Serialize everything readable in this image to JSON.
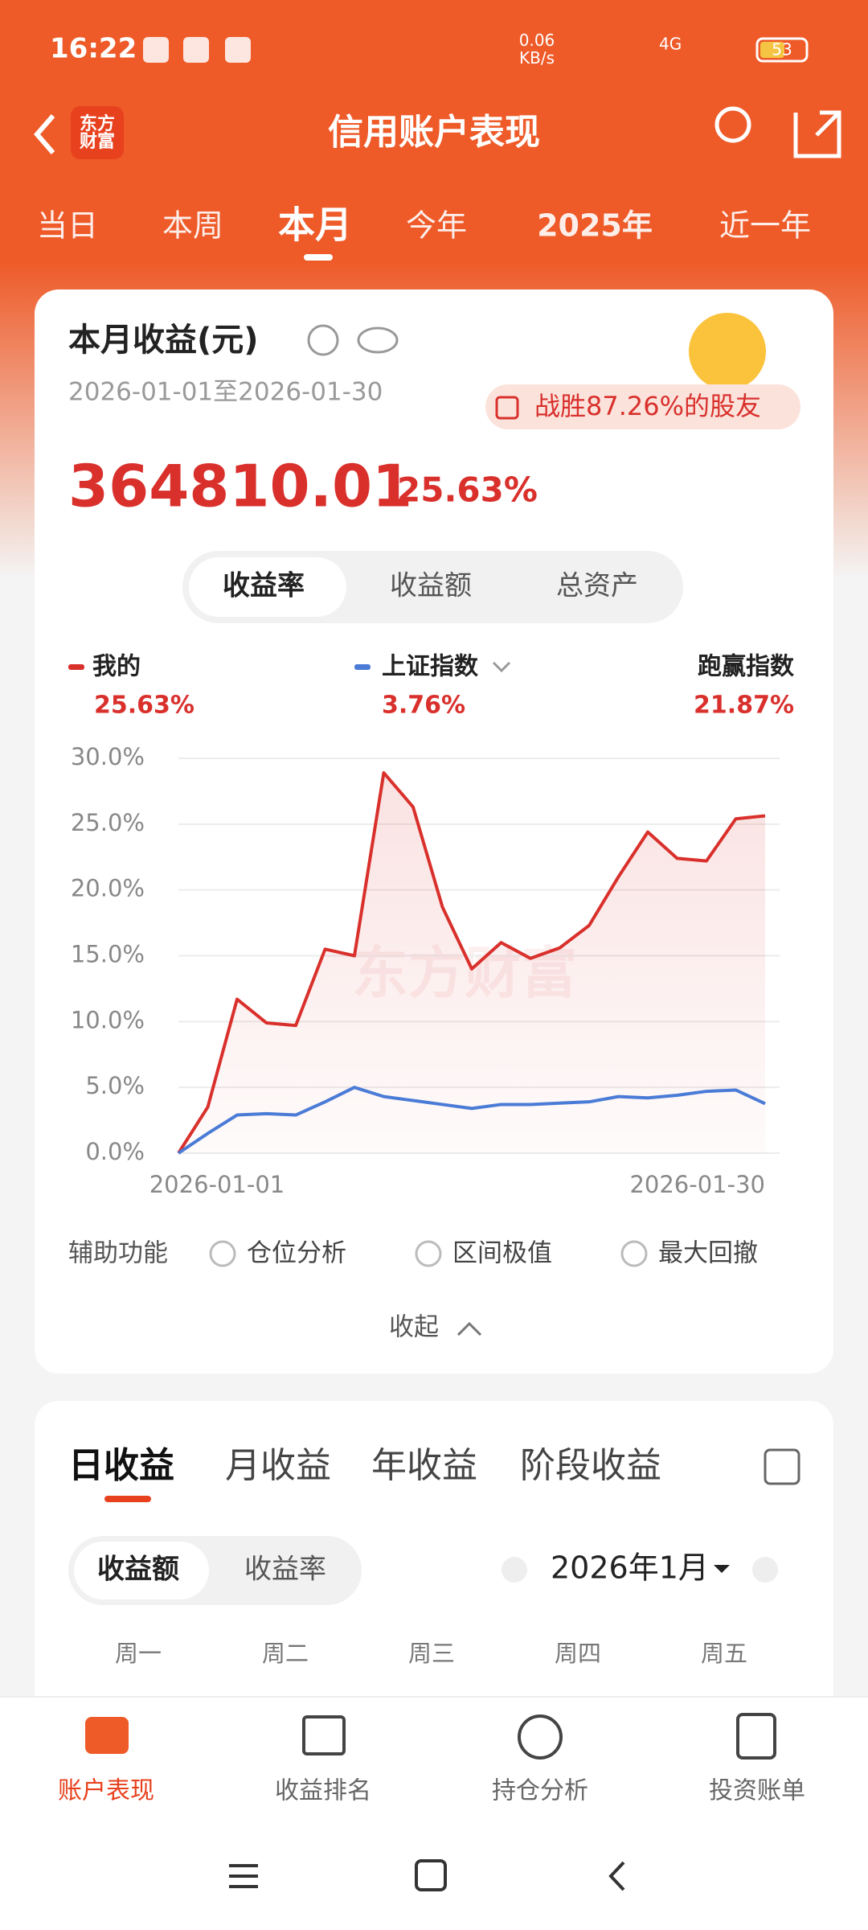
{
  "status_bar": {
    "time": "16:22",
    "net_speed": "0.06\nKB/s",
    "network": "4G",
    "battery": "53"
  },
  "header": {
    "title": "信用账户表现",
    "logo": "东方\n财富"
  },
  "period_tabs": [
    "当日",
    "本周",
    "本月",
    "今年",
    "2025年",
    "近一年"
  ],
  "summary": {
    "title": "本月收益(元)",
    "date_range": "2026-01-01至2026-01-30",
    "beat": "战胜87.26%的股友",
    "amount": "364810.01",
    "rate": "25.63%"
  },
  "metric_tabs": [
    "收益率",
    "收益额",
    "总资产"
  ],
  "legend": [
    {
      "name": "我的",
      "value": "25.63%"
    },
    {
      "name": "上证指数",
      "value": "3.76%"
    },
    {
      "name": "跑赢指数",
      "value": "21.87%"
    }
  ],
  "chart_data": {
    "type": "line",
    "watermark": "东方财富",
    "categories": [
      "2026-01-01",
      null,
      null,
      null,
      null,
      null,
      null,
      null,
      null,
      null,
      null,
      null,
      null,
      null,
      null,
      null,
      null,
      null,
      null,
      null,
      "2026-01-30"
    ],
    "series": [
      {
        "name": "我的",
        "color": "#d9302c",
        "values": [
          0,
          3.5,
          11.7,
          9.9,
          9.7,
          15.5,
          15.0,
          28.9,
          26.3,
          18.7,
          14.0,
          16.0,
          14.8,
          15.6,
          17.3,
          21.0,
          24.4,
          22.4,
          22.2,
          25.4,
          25.63
        ]
      },
      {
        "name": "上证指数",
        "color": "#4a7bd6",
        "values": [
          0,
          1.5,
          2.9,
          3.0,
          2.9,
          3.9,
          5.0,
          4.3,
          4.0,
          3.7,
          3.4,
          3.7,
          3.7,
          3.8,
          3.9,
          4.3,
          4.2,
          4.4,
          4.7,
          4.8,
          3.76
        ]
      }
    ],
    "ylim": [
      0,
      30
    ],
    "yticks": [
      {
        "value": 0,
        "label": "0.0%"
      },
      {
        "value": 5,
        "label": "5.0%"
      },
      {
        "value": 10,
        "label": "10.0%"
      },
      {
        "value": 15,
        "label": "15.0%"
      },
      {
        "value": 20,
        "label": "20.0%"
      },
      {
        "value": 25,
        "label": "25.0%"
      },
      {
        "value": 30,
        "label": "30.0%"
      }
    ],
    "grid": true
  },
  "aux": {
    "label": "辅助功能",
    "options": [
      "仓位分析",
      "区间极值",
      "最大回撤"
    ],
    "collapse": "收起"
  },
  "returns_tabs": [
    "日收益",
    "月收益",
    "年收益",
    "阶段收益"
  ],
  "returns_toggle": [
    "收益额",
    "收益率"
  ],
  "month": "2026年1月",
  "weekdays": [
    "周一",
    "周二",
    "周三",
    "周四",
    "周五"
  ],
  "bottom_nav": [
    "账户表现",
    "收益排名",
    "持仓分析",
    "投资账单"
  ]
}
